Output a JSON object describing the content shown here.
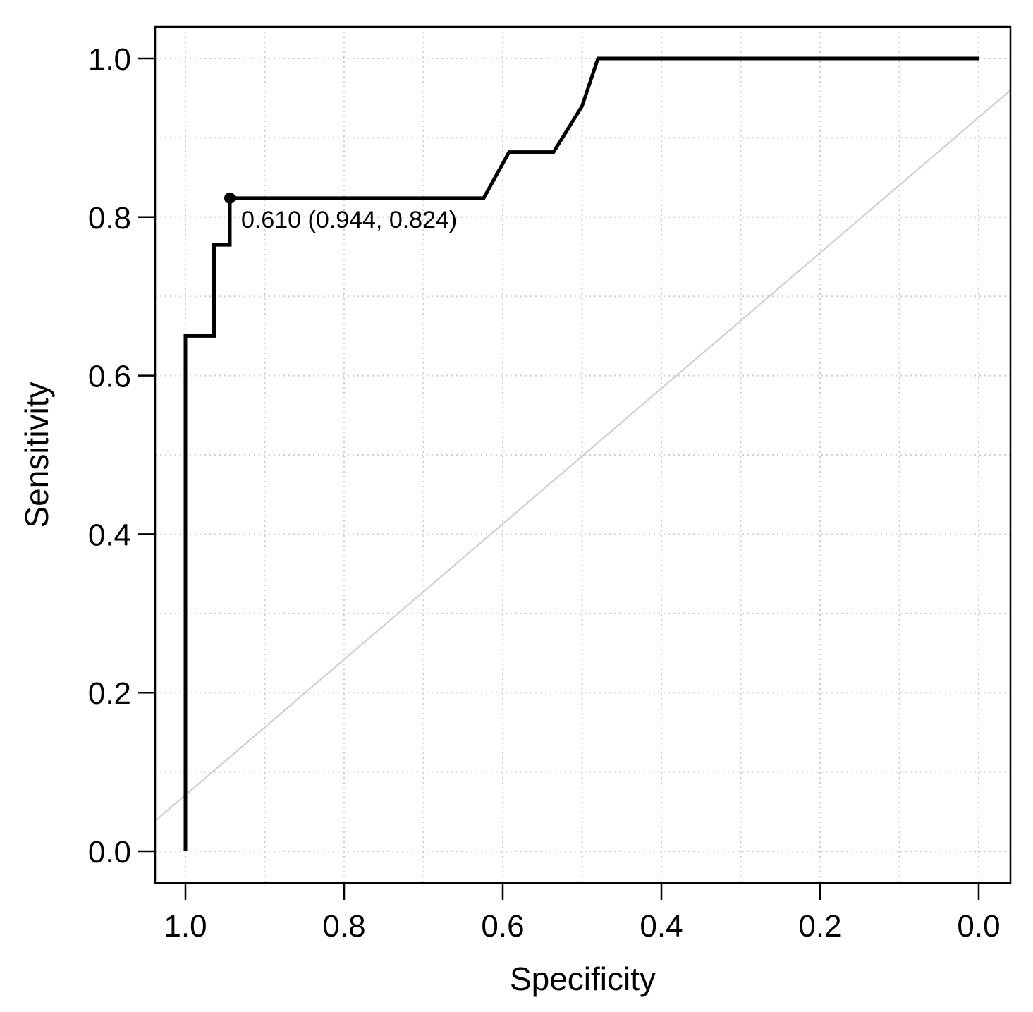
{
  "chart_data": {
    "type": "line",
    "title": "",
    "xlabel": "Specificity",
    "ylabel": "Sensitivity",
    "xlim": [
      1.0,
      0.0
    ],
    "ylim": [
      0.0,
      1.0
    ],
    "x_reversed": true,
    "x_ticks": [
      "1.0",
      "0.8",
      "0.6",
      "0.4",
      "0.2",
      "0.0"
    ],
    "y_ticks": [
      "0.0",
      "0.2",
      "0.4",
      "0.6",
      "0.8",
      "1.0"
    ],
    "grid": true,
    "diagonal_reference": true,
    "series": [
      {
        "x": [
          1.0,
          1.0,
          0.964,
          0.964,
          0.944,
          0.944,
          0.624,
          0.592,
          0.536,
          0.5,
          0.48,
          0.0
        ],
        "y": [
          0.0,
          0.65,
          0.65,
          0.765,
          0.765,
          0.824,
          0.824,
          0.882,
          0.882,
          0.94,
          1.0,
          1.0
        ]
      }
    ],
    "annotation": {
      "x": 0.944,
      "y": 0.824,
      "text": "0.610 (0.944, 0.824)"
    }
  },
  "colors": {
    "curve": "#000000",
    "diagonal": "#cccccc",
    "grid": "#d0d0d0",
    "frame": "#000000"
  }
}
